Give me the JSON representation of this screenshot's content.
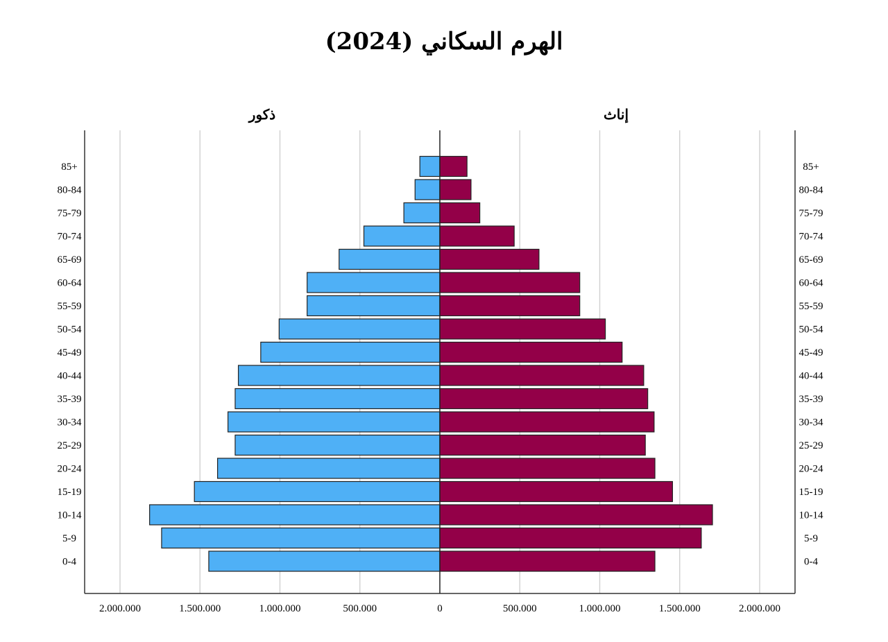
{
  "title": "الهرم السكاني (2024)",
  "chart_data": {
    "type": "bar",
    "orientation": "horizontal-pyramid",
    "title": "الهرم السكاني (2024)",
    "categories": [
      "85+",
      "80-84",
      "75-79",
      "70-74",
      "65-69",
      "60-64",
      "55-59",
      "50-54",
      "45-49",
      "40-44",
      "35-39",
      "30-34",
      "25-29",
      "20-24",
      "15-19",
      "10-14",
      "5-9",
      "0-4"
    ],
    "series": [
      {
        "name": "ذكور",
        "side": "left",
        "color": "#4fb0f6",
        "values": [
          125000,
          155000,
          225000,
          475000,
          630000,
          830000,
          830000,
          1005000,
          1120000,
          1260000,
          1280000,
          1325000,
          1280000,
          1390000,
          1535000,
          1815000,
          1740000,
          1445000
        ]
      },
      {
        "name": "إناث",
        "side": "right",
        "color": "#930048",
        "values": [
          170000,
          195000,
          250000,
          465000,
          620000,
          875000,
          875000,
          1035000,
          1140000,
          1275000,
          1300000,
          1340000,
          1285000,
          1345000,
          1455000,
          1705000,
          1635000,
          1345000
        ]
      }
    ],
    "xlim": [
      -2000000,
      2000000
    ],
    "x_ticks": [
      -2000000,
      -1500000,
      -1000000,
      -500000,
      0,
      500000,
      1000000,
      1500000,
      2000000
    ],
    "x_tick_labels": [
      "2.000.000",
      "1.500.000",
      "1.000.000",
      "500.000",
      "0",
      "500.000",
      "1.000.000",
      "1.500.000",
      "2.000.000"
    ],
    "grid": true,
    "bar_outline_color": "#222222",
    "grid_color": "#d0d0d0"
  }
}
